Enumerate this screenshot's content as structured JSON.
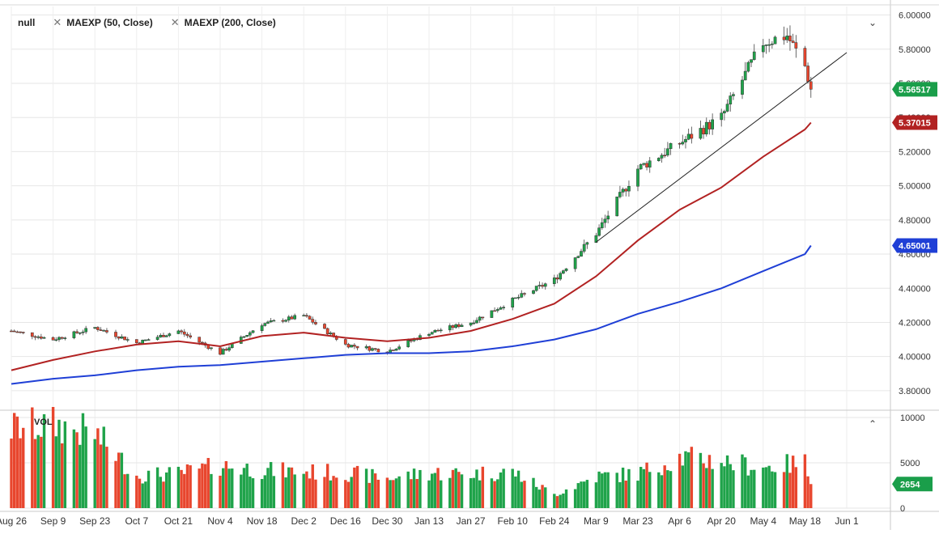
{
  "legend": {
    "symbol": "null",
    "indicators": [
      {
        "label": "MAEXP (50, Close)",
        "color": "#b22222"
      },
      {
        "label": "MAEXP (200, Close)",
        "color": "#1f3fd6"
      }
    ]
  },
  "icons": {
    "remove": "close-icon",
    "collapse_main": "chevron-down-icon",
    "collapse_volume": "chevron-up-icon"
  },
  "price_axis": {
    "ticks": [
      "6.00000",
      "5.80000",
      "5.60000",
      "5.40000",
      "5.20000",
      "5.00000",
      "4.80000",
      "4.60000",
      "4.40000",
      "4.20000",
      "4.00000",
      "3.80000"
    ]
  },
  "volume_axis": {
    "ticks": [
      "10000",
      "5000",
      "0"
    ],
    "label": "VOL"
  },
  "time_axis": {
    "ticks": [
      "Aug 26",
      "Sep 9",
      "Sep 23",
      "Oct 7",
      "Oct 21",
      "Nov 4",
      "Nov 18",
      "Dec 2",
      "Dec 16",
      "Dec 30",
      "Jan 13",
      "Jan 27",
      "Feb 10",
      "Feb 24",
      "Mar 9",
      "Mar 23",
      "Apr 6",
      "Apr 20",
      "May 4",
      "May 18",
      "Jun 1"
    ]
  },
  "price_badges": [
    {
      "label": "5.56517",
      "color": "#1a9e4a"
    },
    {
      "label": "5.37015",
      "color": "#b22222"
    },
    {
      "label": "4.65001",
      "color": "#1f3fd6"
    }
  ],
  "volume_badge": {
    "label": "2654",
    "color": "#1a9e4a"
  },
  "colors": {
    "up": "#1fa34a",
    "down": "#e8462e",
    "ma50": "#b22222",
    "ma200": "#1f3fd6",
    "trendline": "#222222"
  },
  "chart_data": {
    "type": "candlestick",
    "price_ylim": [
      3.7,
      6.05
    ],
    "volume_ylim": [
      0,
      10000
    ],
    "price_anchors": [
      [
        "Aug 26",
        4.15
      ],
      [
        "Sep 9",
        4.1
      ],
      [
        "Sep 23",
        4.17
      ],
      [
        "Oct 7",
        4.08
      ],
      [
        "Oct 21",
        4.15
      ],
      [
        "Nov 4",
        4.02
      ],
      [
        "Nov 18",
        4.19
      ],
      [
        "Dec 2",
        4.24
      ],
      [
        "Dec 16",
        4.07
      ],
      [
        "Dec 30",
        4.03
      ],
      [
        "Jan 13",
        4.14
      ],
      [
        "Jan 27",
        4.2
      ],
      [
        "Feb 10",
        4.33
      ],
      [
        "Feb 24",
        4.45
      ],
      [
        "Mar 9",
        4.72
      ],
      [
        "Mar 23",
        5.1
      ],
      [
        "Apr 6",
        5.25
      ],
      [
        "Apr 20",
        5.4
      ],
      [
        "May 4",
        5.84
      ],
      [
        "May 12",
        5.88
      ],
      [
        "May 18",
        5.7
      ],
      [
        "May 20",
        5.565
      ]
    ],
    "last_close": 5.56517,
    "series": [
      {
        "name": "MAEXP (50, Close)",
        "values": [
          [
            "Aug 26",
            3.92
          ],
          [
            "Sep 9",
            3.98
          ],
          [
            "Sep 23",
            4.03
          ],
          [
            "Oct 7",
            4.07
          ],
          [
            "Oct 21",
            4.09
          ],
          [
            "Nov 4",
            4.06
          ],
          [
            "Nov 18",
            4.12
          ],
          [
            "Dec 2",
            4.14
          ],
          [
            "Dec 16",
            4.11
          ],
          [
            "Dec 30",
            4.09
          ],
          [
            "Jan 13",
            4.11
          ],
          [
            "Jan 27",
            4.15
          ],
          [
            "Feb 10",
            4.22
          ],
          [
            "Feb 24",
            4.31
          ],
          [
            "Mar 9",
            4.47
          ],
          [
            "Mar 23",
            4.68
          ],
          [
            "Apr 6",
            4.86
          ],
          [
            "Apr 20",
            4.99
          ],
          [
            "May 4",
            5.17
          ],
          [
            "May 18",
            5.33
          ],
          [
            "May 20",
            5.37015
          ]
        ]
      },
      {
        "name": "MAEXP (200, Close)",
        "values": [
          [
            "Aug 26",
            3.84
          ],
          [
            "Sep 9",
            3.87
          ],
          [
            "Sep 23",
            3.89
          ],
          [
            "Oct 7",
            3.92
          ],
          [
            "Oct 21",
            3.94
          ],
          [
            "Nov 4",
            3.95
          ],
          [
            "Nov 18",
            3.97
          ],
          [
            "Dec 2",
            3.99
          ],
          [
            "Dec 16",
            4.01
          ],
          [
            "Dec 30",
            4.02
          ],
          [
            "Jan 13",
            4.02
          ],
          [
            "Jan 27",
            4.03
          ],
          [
            "Feb 10",
            4.06
          ],
          [
            "Feb 24",
            4.1
          ],
          [
            "Mar 9",
            4.16
          ],
          [
            "Mar 23",
            4.25
          ],
          [
            "Apr 6",
            4.32
          ],
          [
            "Apr 20",
            4.4
          ],
          [
            "May 4",
            4.5
          ],
          [
            "May 18",
            4.6
          ],
          [
            "May 20",
            4.65001
          ]
        ]
      }
    ],
    "trendline": [
      [
        "Mar 9",
        4.67
      ],
      [
        "Jun 1",
        5.78
      ]
    ],
    "volume_anchors": [
      [
        "Aug 26",
        8800
      ],
      [
        "Sep 9",
        9200
      ],
      [
        "Sep 23",
        8200
      ],
      [
        "Oct 7",
        3600
      ],
      [
        "Oct 21",
        3800
      ],
      [
        "Nov 4",
        4700
      ],
      [
        "Nov 18",
        4200
      ],
      [
        "Dec 2",
        4000
      ],
      [
        "Dec 16",
        3900
      ],
      [
        "Dec 30",
        3300
      ],
      [
        "Jan 13",
        3900
      ],
      [
        "Jan 27",
        3800
      ],
      [
        "Feb 10",
        4000
      ],
      [
        "Feb 24",
        1500
      ],
      [
        "Mar 9",
        3500
      ],
      [
        "Mar 23",
        3800
      ],
      [
        "Apr 6",
        5600
      ],
      [
        "Apr 20",
        5200
      ],
      [
        "May 4",
        4500
      ],
      [
        "May 18",
        5000
      ],
      [
        "May 20",
        2654
      ]
    ],
    "last_volume": 2654
  }
}
